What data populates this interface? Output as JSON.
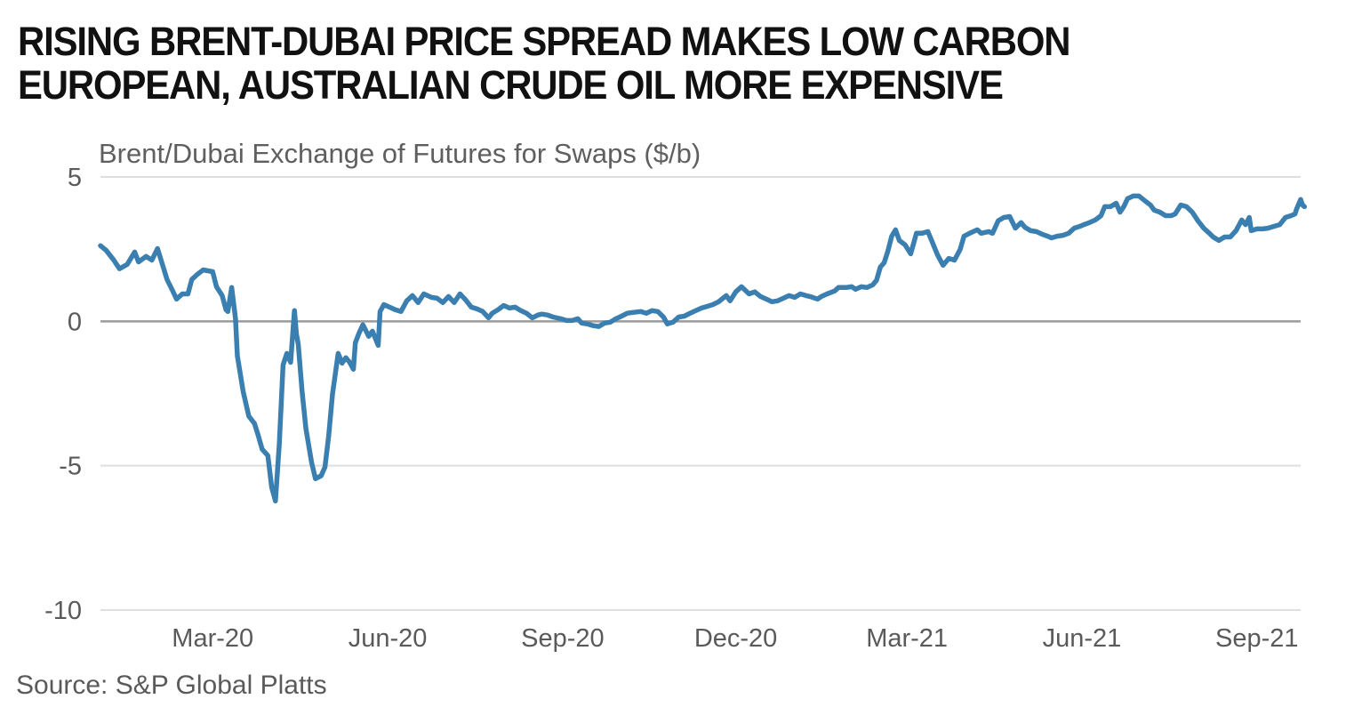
{
  "title_lines": [
    "RISING BRENT-DUBAI PRICE SPREAD MAKES LOW CARBON",
    "EUROPEAN, AUSTRALIAN CRUDE OIL MORE EXPENSIVE"
  ],
  "chart_data": {
    "type": "line",
    "title": "RISING BRENT-DUBAI PRICE SPREAD MAKES LOW CARBON EUROPEAN, AUSTRALIAN CRUDE OIL MORE EXPENSIVE",
    "subtitle": "Brent/Dubai Exchange of Futures for Swaps ($/b)",
    "source": "Source: S&P Global Platts",
    "xlabel": "",
    "ylabel": "Brent/Dubai Exchange of Futures for Swaps ($/b)",
    "ylim": [
      -10,
      5
    ],
    "yticks": [
      5,
      0,
      -5,
      -10
    ],
    "ytick_labels": [
      "5",
      "0",
      "-5",
      "-10"
    ],
    "xlim": [
      "2020-01-02",
      "2021-09-24"
    ],
    "xticks": [
      "2020-03-01",
      "2020-06-01",
      "2020-09-01",
      "2020-12-01",
      "2021-03-01",
      "2021-06-01",
      "2021-09-01"
    ],
    "xtick_labels": [
      "Mar-20",
      "Jun-20",
      "Sep-20",
      "Dec-20",
      "Mar-21",
      "Jun-21",
      "Sep-21"
    ],
    "grid": "horizontal",
    "zero_line": true,
    "legend": "none",
    "series": [
      {
        "name": "Brent/Dubai EFS",
        "color": "#3a7fb0",
        "points": [
          [
            "2020-01-02",
            2.62
          ],
          [
            "2020-01-05",
            2.46
          ],
          [
            "2020-01-09",
            2.12
          ],
          [
            "2020-01-12",
            1.82
          ],
          [
            "2020-01-16",
            1.97
          ],
          [
            "2020-01-20",
            2.4
          ],
          [
            "2020-01-22",
            2.06
          ],
          [
            "2020-01-26",
            2.25
          ],
          [
            "2020-01-29",
            2.12
          ],
          [
            "2020-02-01",
            2.52
          ],
          [
            "2020-02-03",
            2.09
          ],
          [
            "2020-02-06",
            1.45
          ],
          [
            "2020-02-09",
            1.05
          ],
          [
            "2020-02-11",
            0.77
          ],
          [
            "2020-02-14",
            0.95
          ],
          [
            "2020-02-17",
            0.95
          ],
          [
            "2020-02-19",
            1.45
          ],
          [
            "2020-02-22",
            1.63
          ],
          [
            "2020-02-25",
            1.78
          ],
          [
            "2020-03-01",
            1.72
          ],
          [
            "2020-03-03",
            1.2
          ],
          [
            "2020-03-06",
            0.89
          ],
          [
            "2020-03-08",
            0.4
          ],
          [
            "2020-03-09",
            0.34
          ],
          [
            "2020-03-11",
            1.17
          ],
          [
            "2020-03-13",
            0.09
          ],
          [
            "2020-03-14",
            -1.2
          ],
          [
            "2020-03-17",
            -2.43
          ],
          [
            "2020-03-20",
            -3.29
          ],
          [
            "2020-03-23",
            -3.54
          ],
          [
            "2020-03-25",
            -3.97
          ],
          [
            "2020-03-27",
            -4.43
          ],
          [
            "2020-03-30",
            -4.65
          ],
          [
            "2020-04-01",
            -5.75
          ],
          [
            "2020-04-03",
            -6.22
          ],
          [
            "2020-04-05",
            -4.28
          ],
          [
            "2020-04-07",
            -1.51
          ],
          [
            "2020-04-09",
            -1.11
          ],
          [
            "2020-04-11",
            -1.42
          ],
          [
            "2020-04-13",
            0.37
          ],
          [
            "2020-04-14",
            -0.43
          ],
          [
            "2020-04-15",
            -0.8
          ],
          [
            "2020-04-17",
            -2.43
          ],
          [
            "2020-04-19",
            -3.72
          ],
          [
            "2020-04-22",
            -4.89
          ],
          [
            "2020-04-24",
            -5.45
          ],
          [
            "2020-04-27",
            -5.35
          ],
          [
            "2020-04-29",
            -5.05
          ],
          [
            "2020-05-01",
            -3.97
          ],
          [
            "2020-05-03",
            -2.52
          ],
          [
            "2020-05-06",
            -1.11
          ],
          [
            "2020-05-08",
            -1.45
          ],
          [
            "2020-05-10",
            -1.26
          ],
          [
            "2020-05-12",
            -1.42
          ],
          [
            "2020-05-14",
            -1.66
          ],
          [
            "2020-05-15",
            -0.74
          ],
          [
            "2020-05-17",
            -0.4
          ],
          [
            "2020-05-19",
            -0.12
          ],
          [
            "2020-05-22",
            -0.52
          ],
          [
            "2020-05-24",
            -0.34
          ],
          [
            "2020-05-27",
            -0.83
          ],
          [
            "2020-05-28",
            0.34
          ],
          [
            "2020-05-30",
            0.58
          ],
          [
            "2020-06-02",
            0.49
          ],
          [
            "2020-06-05",
            0.4
          ],
          [
            "2020-06-08",
            0.34
          ],
          [
            "2020-06-11",
            0.71
          ],
          [
            "2020-06-14",
            0.89
          ],
          [
            "2020-06-17",
            0.65
          ],
          [
            "2020-06-20",
            0.95
          ],
          [
            "2020-06-24",
            0.83
          ],
          [
            "2020-06-27",
            0.8
          ],
          [
            "2020-06-30",
            0.65
          ],
          [
            "2020-07-03",
            0.86
          ],
          [
            "2020-07-06",
            0.65
          ],
          [
            "2020-07-09",
            0.95
          ],
          [
            "2020-07-12",
            0.74
          ],
          [
            "2020-07-15",
            0.49
          ],
          [
            "2020-07-18",
            0.43
          ],
          [
            "2020-07-21",
            0.34
          ],
          [
            "2020-07-24",
            0.12
          ],
          [
            "2020-07-26",
            0.28
          ],
          [
            "2020-07-29",
            0.4
          ],
          [
            "2020-08-01",
            0.55
          ],
          [
            "2020-08-04",
            0.46
          ],
          [
            "2020-08-07",
            0.49
          ],
          [
            "2020-08-10",
            0.37
          ],
          [
            "2020-08-13",
            0.28
          ],
          [
            "2020-08-16",
            0.12
          ],
          [
            "2020-08-19",
            0.22
          ],
          [
            "2020-08-21",
            0.25
          ],
          [
            "2020-08-24",
            0.22
          ],
          [
            "2020-08-27",
            0.15
          ],
          [
            "2020-08-31",
            0.09
          ],
          [
            "2020-09-03",
            0.03
          ],
          [
            "2020-09-06",
            0.03
          ],
          [
            "2020-09-09",
            0.09
          ],
          [
            "2020-09-11",
            -0.06
          ],
          [
            "2020-09-14",
            -0.09
          ],
          [
            "2020-09-17",
            -0.15
          ],
          [
            "2020-09-20",
            -0.18
          ],
          [
            "2020-09-23",
            -0.06
          ],
          [
            "2020-09-26",
            -0.03
          ],
          [
            "2020-09-29",
            0.09
          ],
          [
            "2020-10-01",
            0.15
          ],
          [
            "2020-10-05",
            0.28
          ],
          [
            "2020-10-08",
            0.31
          ],
          [
            "2020-10-12",
            0.34
          ],
          [
            "2020-10-15",
            0.28
          ],
          [
            "2020-10-18",
            0.37
          ],
          [
            "2020-10-21",
            0.34
          ],
          [
            "2020-10-24",
            0.15
          ],
          [
            "2020-10-26",
            -0.09
          ],
          [
            "2020-10-29",
            -0.03
          ],
          [
            "2020-11-01",
            0.15
          ],
          [
            "2020-11-04",
            0.18
          ],
          [
            "2020-11-07",
            0.28
          ],
          [
            "2020-11-10",
            0.37
          ],
          [
            "2020-11-13",
            0.46
          ],
          [
            "2020-11-16",
            0.52
          ],
          [
            "2020-11-19",
            0.58
          ],
          [
            "2020-11-22",
            0.68
          ],
          [
            "2020-11-26",
            0.89
          ],
          [
            "2020-11-28",
            0.71
          ],
          [
            "2020-12-01",
            1.02
          ],
          [
            "2020-12-04",
            1.2
          ],
          [
            "2020-12-08",
            0.95
          ],
          [
            "2020-12-11",
            1.02
          ],
          [
            "2020-12-14",
            0.86
          ],
          [
            "2020-12-17",
            0.77
          ],
          [
            "2020-12-20",
            0.68
          ],
          [
            "2020-12-23",
            0.71
          ],
          [
            "2020-12-26",
            0.8
          ],
          [
            "2020-12-29",
            0.89
          ],
          [
            "2021-01-01",
            0.83
          ],
          [
            "2021-01-04",
            0.95
          ],
          [
            "2021-01-07",
            0.89
          ],
          [
            "2021-01-09",
            0.86
          ],
          [
            "2021-01-13",
            0.77
          ],
          [
            "2021-01-15",
            0.86
          ],
          [
            "2021-01-18",
            0.95
          ],
          [
            "2021-01-22",
            1.05
          ],
          [
            "2021-01-24",
            1.17
          ],
          [
            "2021-01-28",
            1.17
          ],
          [
            "2021-01-31",
            1.2
          ],
          [
            "2021-02-02",
            1.11
          ],
          [
            "2021-02-05",
            1.2
          ],
          [
            "2021-02-08",
            1.17
          ],
          [
            "2021-02-11",
            1.26
          ],
          [
            "2021-02-13",
            1.42
          ],
          [
            "2021-02-15",
            1.88
          ],
          [
            "2021-02-17",
            2.03
          ],
          [
            "2021-02-19",
            2.43
          ],
          [
            "2021-02-21",
            2.95
          ],
          [
            "2021-02-23",
            3.17
          ],
          [
            "2021-02-25",
            2.8
          ],
          [
            "2021-02-28",
            2.65
          ],
          [
            "2021-03-03",
            2.34
          ],
          [
            "2021-03-06",
            3.05
          ],
          [
            "2021-03-09",
            3.05
          ],
          [
            "2021-03-12",
            3.11
          ],
          [
            "2021-03-14",
            2.8
          ],
          [
            "2021-03-17",
            2.31
          ],
          [
            "2021-03-20",
            1.94
          ],
          [
            "2021-03-23",
            2.18
          ],
          [
            "2021-03-26",
            2.12
          ],
          [
            "2021-03-29",
            2.49
          ],
          [
            "2021-03-31",
            2.95
          ],
          [
            "2021-04-03",
            3.05
          ],
          [
            "2021-04-07",
            3.17
          ],
          [
            "2021-04-09",
            3.05
          ],
          [
            "2021-04-13",
            3.11
          ],
          [
            "2021-04-15",
            3.05
          ],
          [
            "2021-04-18",
            3.48
          ],
          [
            "2021-04-21",
            3.6
          ],
          [
            "2021-04-24",
            3.63
          ],
          [
            "2021-04-27",
            3.23
          ],
          [
            "2021-04-30",
            3.42
          ],
          [
            "2021-05-02",
            3.26
          ],
          [
            "2021-05-05",
            3.14
          ],
          [
            "2021-05-08",
            3.11
          ],
          [
            "2021-05-11",
            3.02
          ],
          [
            "2021-05-14",
            2.95
          ],
          [
            "2021-05-16",
            2.89
          ],
          [
            "2021-05-19",
            2.95
          ],
          [
            "2021-05-22",
            2.98
          ],
          [
            "2021-05-25",
            3.05
          ],
          [
            "2021-05-28",
            3.23
          ],
          [
            "2021-05-31",
            3.29
          ],
          [
            "2021-06-02",
            3.35
          ],
          [
            "2021-06-05",
            3.42
          ],
          [
            "2021-06-08",
            3.51
          ],
          [
            "2021-06-11",
            3.66
          ],
          [
            "2021-06-13",
            3.97
          ],
          [
            "2021-06-16",
            3.97
          ],
          [
            "2021-06-19",
            4.09
          ],
          [
            "2021-06-21",
            3.78
          ],
          [
            "2021-06-23",
            3.97
          ],
          [
            "2021-06-25",
            4.25
          ],
          [
            "2021-06-28",
            4.34
          ],
          [
            "2021-07-01",
            4.34
          ],
          [
            "2021-07-04",
            4.18
          ],
          [
            "2021-07-07",
            4.03
          ],
          [
            "2021-07-09",
            3.85
          ],
          [
            "2021-07-12",
            3.78
          ],
          [
            "2021-07-15",
            3.66
          ],
          [
            "2021-07-18",
            3.66
          ],
          [
            "2021-07-20",
            3.72
          ],
          [
            "2021-07-23",
            4.03
          ],
          [
            "2021-07-26",
            3.97
          ],
          [
            "2021-07-29",
            3.78
          ],
          [
            "2021-08-01",
            3.48
          ],
          [
            "2021-08-04",
            3.23
          ],
          [
            "2021-08-07",
            3.05
          ],
          [
            "2021-08-09",
            2.92
          ],
          [
            "2021-08-12",
            2.8
          ],
          [
            "2021-08-15",
            2.92
          ],
          [
            "2021-08-18",
            2.92
          ],
          [
            "2021-08-21",
            3.14
          ],
          [
            "2021-08-24",
            3.51
          ],
          [
            "2021-08-26",
            3.35
          ],
          [
            "2021-08-28",
            3.6
          ],
          [
            "2021-08-29",
            3.14
          ],
          [
            "2021-09-01",
            3.2
          ],
          [
            "2021-09-04",
            3.2
          ],
          [
            "2021-09-07",
            3.23
          ],
          [
            "2021-09-10",
            3.29
          ],
          [
            "2021-09-13",
            3.35
          ],
          [
            "2021-09-16",
            3.6
          ],
          [
            "2021-09-19",
            3.66
          ],
          [
            "2021-09-21",
            3.72
          ],
          [
            "2021-09-22",
            3.91
          ],
          [
            "2021-09-24",
            4.22
          ],
          [
            "2021-09-25",
            4.03
          ],
          [
            "2021-09-26",
            3.97
          ]
        ]
      }
    ]
  }
}
